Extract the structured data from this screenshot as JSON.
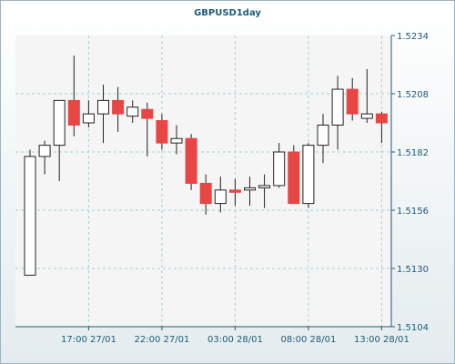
{
  "chart_data": {
    "type": "candlestick",
    "title": "GBPUSD1day",
    "y_ticks": [
      "1.5234",
      "1.5208",
      "1.5182",
      "1.5156",
      "1.5130",
      "1.5104"
    ],
    "ylim": [
      1.5104,
      1.5234
    ],
    "x_ticks": [
      {
        "label": "17:00 27/01",
        "index": 4
      },
      {
        "label": "22:00 27/01",
        "index": 9
      },
      {
        "label": "03:00 28/01",
        "index": 14
      },
      {
        "label": "08:00 28/01",
        "index": 19
      },
      {
        "label": "13:00 28/01",
        "index": 24
      }
    ],
    "grid": true,
    "colors": {
      "bull": "#ffffff",
      "bear": "#e84545",
      "wick": "#222222",
      "grid": "#9fd3d8",
      "text": "#1d5b77"
    },
    "candles": [
      {
        "open": 1.5127,
        "high": 1.5183,
        "low": 1.5127,
        "close": 1.518
      },
      {
        "open": 1.518,
        "high": 1.5187,
        "low": 1.5172,
        "close": 1.5185
      },
      {
        "open": 1.5185,
        "high": 1.5204,
        "low": 1.5169,
        "close": 1.5205
      },
      {
        "open": 1.5205,
        "high": 1.5225,
        "low": 1.5189,
        "close": 1.5194
      },
      {
        "open": 1.5195,
        "high": 1.5205,
        "low": 1.5193,
        "close": 1.5199
      },
      {
        "open": 1.5199,
        "high": 1.5212,
        "low": 1.5186,
        "close": 1.5205
      },
      {
        "open": 1.5205,
        "high": 1.5211,
        "low": 1.5191,
        "close": 1.5199
      },
      {
        "open": 1.5198,
        "high": 1.5205,
        "low": 1.5195,
        "close": 1.5202
      },
      {
        "open": 1.5201,
        "high": 1.5204,
        "low": 1.518,
        "close": 1.5197
      },
      {
        "open": 1.5196,
        "high": 1.5199,
        "low": 1.5183,
        "close": 1.5186
      },
      {
        "open": 1.5186,
        "high": 1.5194,
        "low": 1.5181,
        "close": 1.5188
      },
      {
        "open": 1.5188,
        "high": 1.519,
        "low": 1.5165,
        "close": 1.5168
      },
      {
        "open": 1.5168,
        "high": 1.5172,
        "low": 1.5154,
        "close": 1.5159
      },
      {
        "open": 1.5159,
        "high": 1.5171,
        "low": 1.5155,
        "close": 1.5165
      },
      {
        "open": 1.5165,
        "high": 1.517,
        "low": 1.5158,
        "close": 1.5164
      },
      {
        "open": 1.5165,
        "high": 1.5171,
        "low": 1.5158,
        "close": 1.5166
      },
      {
        "open": 1.5166,
        "high": 1.5172,
        "low": 1.5157,
        "close": 1.5167
      },
      {
        "open": 1.5167,
        "high": 1.5186,
        "low": 1.5166,
        "close": 1.5182
      },
      {
        "open": 1.5182,
        "high": 1.5185,
        "low": 1.5159,
        "close": 1.5159
      },
      {
        "open": 1.5159,
        "high": 1.5186,
        "low": 1.5157,
        "close": 1.5185
      },
      {
        "open": 1.5185,
        "high": 1.5199,
        "low": 1.5177,
        "close": 1.5194
      },
      {
        "open": 1.5194,
        "high": 1.5216,
        "low": 1.5183,
        "close": 1.521
      },
      {
        "open": 1.521,
        "high": 1.5215,
        "low": 1.5196,
        "close": 1.5199
      },
      {
        "open": 1.5197,
        "high": 1.5219,
        "low": 1.5195,
        "close": 1.5199
      },
      {
        "open": 1.5199,
        "high": 1.52,
        "low": 1.5186,
        "close": 1.5195
      }
    ]
  }
}
